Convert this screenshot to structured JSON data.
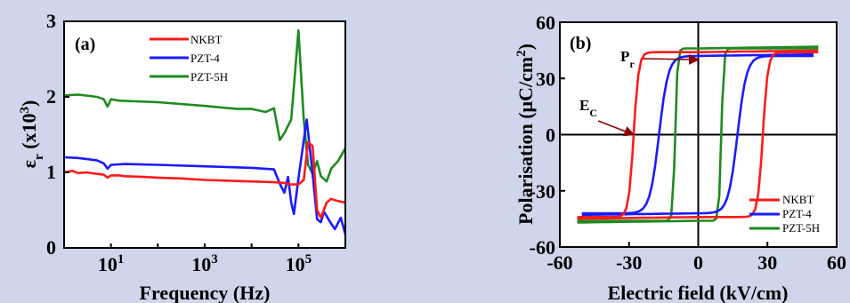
{
  "colors": {
    "background": "#cfd5ea",
    "plot_bg": "#ffffff",
    "nkbt": "#ff1a1a",
    "pzt4": "#1a1aff",
    "pzt5h": "#1f8a1f",
    "annotation_arrow": "#8b0000"
  },
  "chart_data": [
    {
      "type": "line",
      "panel_label": "(a)",
      "xlabel": "Frequency (Hz)",
      "ylabel_main": "ε",
      "ylabel_sub": "r",
      "ylabel_rest": " (x10",
      "ylabel_sup": "3",
      "ylabel_close": ")",
      "x_scale": "log",
      "xlim": [
        1,
        1000000
      ],
      "ylim": [
        0,
        3
      ],
      "x_tick_base": "10",
      "x_ticks": [
        {
          "value": 10,
          "exp": "1"
        },
        {
          "value": 1000,
          "exp": "3"
        },
        {
          "value": 100000,
          "exp": "5"
        }
      ],
      "y_ticks": [
        "0",
        "1",
        "2",
        "3"
      ],
      "legend_position": "top-center",
      "series": [
        {
          "name": "NKBT",
          "color_key": "nkbt",
          "x": [
            1,
            1.5,
            2,
            3,
            5,
            7,
            8.5,
            10,
            15,
            20,
            50,
            100,
            300,
            1000,
            3000,
            10000,
            30000,
            50000,
            70000,
            100000,
            130000,
            160000,
            200000,
            250000,
            300000,
            400000,
            500000,
            700000,
            1000000
          ],
          "y": [
            1.0,
            1.02,
            0.99,
            1.0,
            0.98,
            0.97,
            0.93,
            0.96,
            0.96,
            0.95,
            0.94,
            0.93,
            0.92,
            0.9,
            0.89,
            0.88,
            0.87,
            0.86,
            0.84,
            0.84,
            0.9,
            1.4,
            1.35,
            0.5,
            0.4,
            0.6,
            0.65,
            0.62,
            0.6
          ]
        },
        {
          "name": "PZT-4",
          "color_key": "pzt4",
          "x": [
            1,
            2,
            5,
            7,
            8.5,
            10,
            20,
            100,
            1000,
            10000,
            30000,
            40000,
            50000,
            60000,
            70000,
            80000,
            100000,
            150000,
            200000,
            250000,
            300000,
            350000,
            400000,
            500000,
            600000,
            800000,
            1000000
          ],
          "y": [
            1.2,
            1.19,
            1.16,
            1.12,
            1.05,
            1.1,
            1.11,
            1.1,
            1.08,
            1.06,
            1.04,
            0.85,
            0.73,
            0.94,
            0.6,
            0.45,
            0.92,
            1.7,
            0.98,
            0.38,
            0.34,
            0.48,
            0.42,
            0.32,
            0.25,
            0.4,
            0.18
          ]
        },
        {
          "name": "PZT-5H",
          "color_key": "pzt5h",
          "x": [
            1,
            2,
            5,
            7,
            8.5,
            10,
            15,
            100,
            1000,
            5000,
            10000,
            20000,
            30000,
            40000,
            50000,
            70000,
            100000,
            130000,
            160000,
            200000,
            250000,
            300000,
            400000,
            500000,
            700000,
            1000000
          ],
          "y": [
            2.02,
            2.03,
            2.0,
            1.97,
            1.87,
            1.97,
            1.95,
            1.93,
            1.88,
            1.84,
            1.84,
            1.8,
            1.85,
            1.43,
            1.52,
            1.7,
            2.88,
            1.7,
            1.1,
            0.98,
            1.15,
            0.95,
            0.88,
            1.05,
            1.15,
            1.32
          ]
        }
      ]
    },
    {
      "type": "line",
      "panel_label": "(b)",
      "xlabel": "Electric field (kV/cm)",
      "ylabel_main": "Polarisation (μC/cm",
      "ylabel_sup": "2",
      "ylabel_close": ")",
      "xlim": [
        -60,
        60
      ],
      "ylim": [
        -60,
        60
      ],
      "x_ticks": [
        "-60",
        "-30",
        "0",
        "30",
        "60"
      ],
      "y_ticks": [
        "-60",
        "-30",
        "0",
        "30",
        "60"
      ],
      "legend_position": "bottom-right",
      "annotations": [
        {
          "label_main": "P",
          "label_sub": "r",
          "target": [
            0,
            40
          ]
        },
        {
          "label_main": "E",
          "label_sub": "C",
          "target": [
            -28,
            0
          ]
        }
      ],
      "series": [
        {
          "name": "NKBT",
          "color_key": "nkbt",
          "ec": 28,
          "emax": 52,
          "ps": 44,
          "ptop": 45,
          "w": 2.2
        },
        {
          "name": "PZT-4",
          "color_key": "pzt4",
          "ec": 17,
          "emax": 50,
          "ps": 42,
          "ptop": 43,
          "w": 4.0
        },
        {
          "name": "PZT-5H",
          "color_key": "pzt5h",
          "ec": 10,
          "emax": 52,
          "ps": 46,
          "ptop": 47,
          "w": 1.0
        }
      ]
    }
  ]
}
